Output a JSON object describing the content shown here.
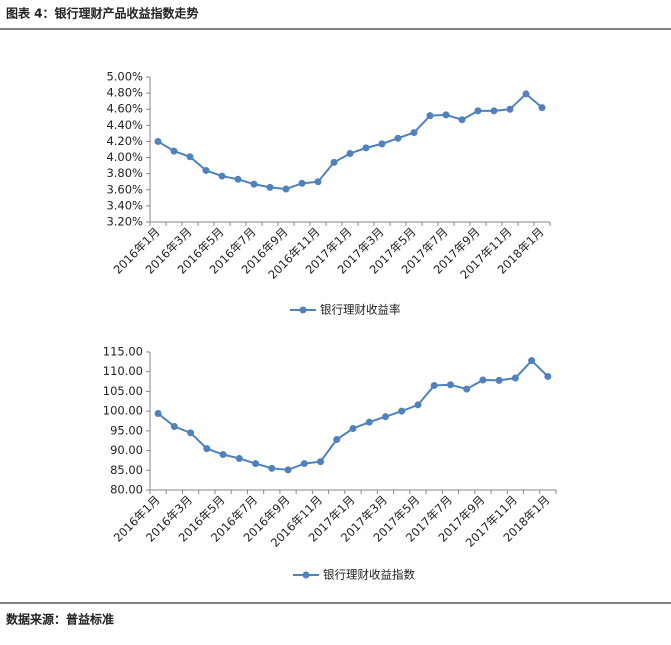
{
  "header": {
    "title": "图表 4：银行理财产品收益指数走势"
  },
  "footer": {
    "source": "数据来源：普益标准"
  },
  "chart_data": [
    {
      "type": "line",
      "categories": [
        "2016年1月",
        null,
        "2016年3月",
        null,
        "2016年5月",
        null,
        "2016年7月",
        null,
        "2016年9月",
        null,
        "2016年11月",
        null,
        "2017年1月",
        null,
        "2017年3月",
        null,
        "2017年5月",
        null,
        "2017年7月",
        null,
        "2017年9月",
        null,
        "2017年11月",
        null,
        "2018年1月"
      ],
      "series": [
        {
          "name": "银行理财收益率",
          "color": "#4f81bd",
          "values": [
            4.2,
            4.08,
            4.01,
            3.84,
            3.77,
            3.73,
            3.67,
            3.63,
            3.61,
            3.68,
            3.7,
            3.94,
            4.05,
            4.12,
            4.17,
            4.24,
            4.31,
            4.52,
            4.53,
            4.47,
            4.58,
            4.58,
            4.6,
            4.79,
            4.62
          ]
        }
      ],
      "ylim": [
        3.2,
        5.0
      ],
      "yticks": [
        {
          "value": 3.2,
          "label": "3.20%"
        },
        {
          "value": 3.4,
          "label": "3.40%"
        },
        {
          "value": 3.6,
          "label": "3.60%"
        },
        {
          "value": 3.8,
          "label": "3.80%"
        },
        {
          "value": 4.0,
          "label": "4.00%"
        },
        {
          "value": 4.2,
          "label": "4.20%"
        },
        {
          "value": 4.4,
          "label": "4.40%"
        },
        {
          "value": 4.6,
          "label": "4.60%"
        },
        {
          "value": 4.8,
          "label": "4.80%"
        },
        {
          "value": 5.0,
          "label": "5.00%"
        }
      ],
      "legend": "bottom"
    },
    {
      "type": "line",
      "categories": [
        "2016年1月",
        null,
        "2016年3月",
        null,
        "2016年5月",
        null,
        "2016年7月",
        null,
        "2016年9月",
        null,
        "2016年11月",
        null,
        "2017年1月",
        null,
        "2017年3月",
        null,
        "2017年5月",
        null,
        "2017年7月",
        null,
        "2017年9月",
        null,
        "2017年11月",
        null,
        "2018年1月"
      ],
      "series": [
        {
          "name": "银行理财收益指数",
          "color": "#4f81bd",
          "values": [
            99.4,
            96.1,
            94.5,
            90.5,
            89.0,
            88.0,
            86.7,
            85.5,
            85.1,
            86.7,
            87.2,
            92.8,
            95.6,
            97.2,
            98.6,
            100.0,
            101.6,
            106.5,
            106.7,
            105.6,
            107.9,
            107.8,
            108.4,
            112.8,
            108.8
          ]
        }
      ],
      "ylim": [
        80,
        115
      ],
      "yticks": [
        {
          "value": 80,
          "label": "80.00"
        },
        {
          "value": 85,
          "label": "85.00"
        },
        {
          "value": 90,
          "label": "90.00"
        },
        {
          "value": 95,
          "label": "95.00"
        },
        {
          "value": 100,
          "label": "100.00"
        },
        {
          "value": 105,
          "label": "105.00"
        },
        {
          "value": 110,
          "label": "110.00"
        },
        {
          "value": 115,
          "label": "115.00"
        }
      ],
      "legend": "bottom"
    }
  ]
}
